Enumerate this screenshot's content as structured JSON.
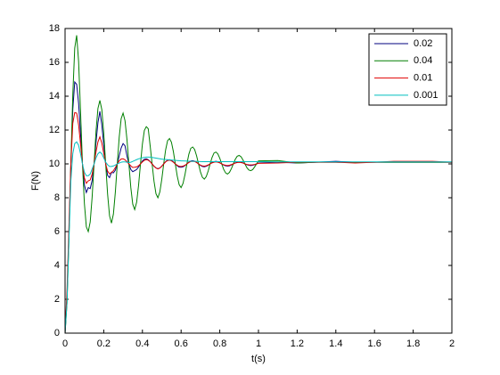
{
  "chart_data": {
    "type": "line",
    "x_label": "t(s)",
    "y_label": "F(N)",
    "x": [
      0,
      0.01,
      0.02,
      0.03,
      0.04,
      0.05,
      0.06,
      0.07,
      0.08,
      0.09,
      0.1,
      0.11,
      0.12,
      0.13,
      0.14,
      0.15,
      0.16,
      0.17,
      0.18,
      0.19,
      0.2,
      0.21,
      0.22,
      0.23,
      0.24,
      0.25,
      0.26,
      0.27,
      0.28,
      0.29,
      0.3,
      0.31,
      0.32,
      0.33,
      0.34,
      0.35,
      0.36,
      0.37,
      0.38,
      0.39,
      0.4,
      0.41,
      0.42,
      0.43,
      0.44,
      0.45,
      0.46,
      0.47,
      0.48,
      0.49,
      0.5,
      0.51,
      0.52,
      0.53,
      0.54,
      0.55,
      0.56,
      0.57,
      0.58,
      0.59,
      0.6,
      0.61,
      0.62,
      0.63,
      0.64,
      0.65,
      0.66,
      0.67,
      0.68,
      0.69,
      0.7,
      0.71,
      0.72,
      0.73,
      0.74,
      0.75,
      0.76,
      0.77,
      0.78,
      0.79,
      0.8,
      0.81,
      0.82,
      0.83,
      0.84,
      0.85,
      0.86,
      0.87,
      0.88,
      0.89,
      0.9,
      0.91,
      0.92,
      0.93,
      0.94,
      0.95,
      0.96,
      0.97,
      0.98,
      0.99,
      1,
      1.1,
      1.2,
      1.3,
      1.4,
      1.5,
      1.6,
      1.7,
      1.8,
      1.9,
      2
    ],
    "series": [
      {
        "name": "0.02",
        "color": "#00007f",
        "values": [
          0,
          2.1,
          5.88,
          10,
          13.23,
          14.84,
          14.7,
          13.59,
          11.8,
          10,
          8.75,
          8.31,
          8.6,
          8.54,
          9.02,
          10,
          11.27,
          12.44,
          13.1,
          12.31,
          11.12,
          10,
          9.32,
          9.19,
          9.5,
          9.47,
          9.63,
          10,
          10.48,
          10.94,
          11.2,
          11.07,
          10.47,
          10,
          9.67,
          9.54,
          9.6,
          9.67,
          9.82,
          10,
          10.17,
          10.27,
          10.3,
          10.25,
          10.14,
          10,
          9.86,
          9.76,
          9.72,
          9.76,
          9.87,
          10,
          10.13,
          10.22,
          10.25,
          10.21,
          10.12,
          10,
          9.89,
          9.81,
          9.8,
          9.83,
          9.9,
          10,
          10.1,
          10.17,
          10.19,
          10.16,
          10.09,
          10,
          9.91,
          9.85,
          9.83,
          9.86,
          9.92,
          10,
          10.08,
          10.13,
          10.15,
          10.13,
          10.07,
          10,
          9.93,
          9.89,
          9.87,
          9.89,
          9.94,
          10,
          10.06,
          10.1,
          10.11,
          10.1,
          10.06,
          10,
          9.95,
          9.92,
          9.9,
          9.92,
          9.95,
          10,
          10.05,
          10.1,
          10.05,
          10.1,
          10.15,
          10.1,
          10.1,
          10.1,
          10.1,
          10.1,
          10.1
        ]
      },
      {
        "name": "0.04",
        "color": "#007f00",
        "values": [
          0,
          1.77,
          5.5,
          10,
          14.1,
          16.84,
          17.6,
          16.06,
          13.1,
          10,
          7.65,
          6.28,
          6,
          6.57,
          8.04,
          10,
          11.92,
          13.28,
          13.75,
          13.21,
          11.83,
          10,
          8.21,
          6.93,
          6.5,
          7.04,
          8.33,
          10,
          11.58,
          12.67,
          13,
          12.55,
          11.45,
          10,
          8.6,
          7.62,
          7.3,
          7.73,
          8.73,
          10,
          11.18,
          11.98,
          12.2,
          12.08,
          11.07,
          10,
          8.97,
          8.24,
          8,
          8.34,
          9.08,
          10,
          10.83,
          11.37,
          11.5,
          11.28,
          10.73,
          10,
          9.28,
          8.77,
          8.6,
          8.85,
          9.37,
          10,
          10.57,
          10.92,
          11,
          10.85,
          10.48,
          10,
          9.53,
          9.21,
          9.1,
          9.25,
          9.58,
          10,
          10.38,
          10.64,
          10.7,
          10.59,
          10.33,
          10,
          9.68,
          9.47,
          9.4,
          9.5,
          9.72,
          10,
          10.27,
          10.45,
          10.5,
          10.42,
          10.23,
          10,
          9.78,
          9.64,
          9.6,
          9.66,
          9.82,
          10,
          10.18,
          10.2,
          10.05,
          10.1,
          10.1,
          10.1,
          10.1,
          10.1,
          10.1,
          10.1,
          10.1
        ]
      },
      {
        "name": "0.01",
        "color": "#e00000",
        "values": [
          0,
          2.47,
          6.3,
          10,
          12.4,
          13.03,
          13,
          12.31,
          11.17,
          10,
          9.17,
          8.85,
          9,
          9.05,
          9.4,
          10,
          10.7,
          11.3,
          11.6,
          11.23,
          10.62,
          10,
          9.57,
          9.41,
          9.5,
          9.6,
          9.78,
          10,
          10.18,
          10.29,
          10.3,
          10.24,
          10.13,
          10,
          9.88,
          9.79,
          9.8,
          9.82,
          9.89,
          10,
          10.12,
          10.21,
          10.25,
          10.22,
          10.13,
          10,
          9.86,
          9.76,
          9.7,
          9.75,
          9.86,
          10,
          10.12,
          10.2,
          10.22,
          10.18,
          10.1,
          10,
          9.92,
          9.86,
          9.85,
          9.87,
          9.92,
          10,
          10.08,
          10.14,
          10.16,
          10.14,
          10.08,
          10,
          9.93,
          9.88,
          9.87,
          9.89,
          9.94,
          10,
          10.06,
          10.1,
          10.12,
          10.1,
          10.06,
          10,
          9.95,
          9.92,
          9.9,
          9.92,
          9.96,
          10,
          10.05,
          10.08,
          10.09,
          10.08,
          10.05,
          10,
          9.97,
          9.95,
          9.94,
          9.95,
          9.97,
          10,
          10.03,
          10.05,
          10.1,
          10.1,
          10.1,
          10.05,
          10.1,
          10.15,
          10.15,
          10.15,
          10.1
        ]
      },
      {
        "name": "0.001",
        "color": "#00bfbf",
        "values": [
          0,
          1.8,
          5.5,
          9,
          10.6,
          11.2,
          11.3,
          11.1,
          10.6,
          10,
          9.5,
          9.3,
          9.3,
          9.4,
          9.7,
          10,
          10.35,
          10.6,
          10.7,
          10.6,
          10.35,
          10.1,
          9.95,
          9.85,
          9.85,
          9.88,
          9.93,
          10,
          10.05,
          10.1,
          10.12,
          10.12,
          10.1,
          10.08,
          10.1,
          10.15,
          10.2,
          10.25,
          10.3,
          10.33,
          10.36,
          10.38,
          10.4,
          10.4,
          10.4,
          10.38,
          10.36,
          10.34,
          10.32,
          10.3,
          10.28,
          10.27,
          10.26,
          10.25,
          10.24,
          10.23,
          10.22,
          10.21,
          10.2,
          10.19,
          10.18,
          10.18,
          10.17,
          10.17,
          10.16,
          10.16,
          10.15,
          10.15,
          10.15,
          10.14,
          10.14,
          10.13,
          10.13,
          10.13,
          10.13,
          10.13,
          10.13,
          10.13,
          10.13,
          10.13,
          10.13,
          10.13,
          10.13,
          10.13,
          10.13,
          10.13,
          10.13,
          10.13,
          10.13,
          10.13,
          10.13,
          10.13,
          10.13,
          10.13,
          10.13,
          10.13,
          10.13,
          10.13,
          10.13,
          10.13,
          10.13,
          10.12,
          10.12,
          10.12,
          10.12,
          10.12,
          10.12,
          10.12,
          10.12,
          10.12,
          10.12
        ]
      }
    ],
    "xlim": [
      0,
      2
    ],
    "xticks": [
      0,
      0.2,
      0.4,
      0.6,
      0.8,
      1,
      1.2,
      1.4,
      1.6,
      1.8,
      2
    ],
    "ylim": [
      0,
      18
    ],
    "yticks": [
      0,
      2,
      4,
      6,
      8,
      10,
      12,
      14,
      16,
      18
    ],
    "grid": false,
    "legend": "upper right"
  }
}
